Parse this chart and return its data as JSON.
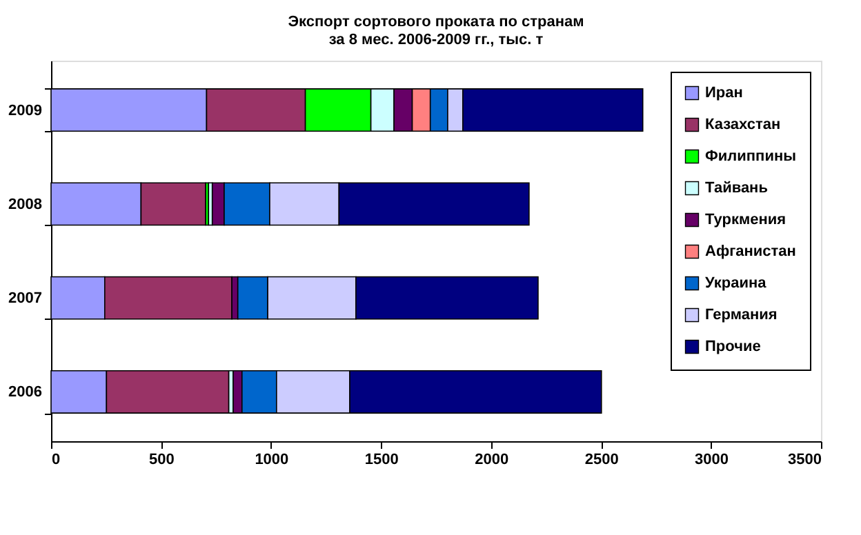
{
  "chart_data": {
    "type": "bar",
    "orientation": "horizontal",
    "stacked": true,
    "title": "Экспорт сортового проката по странам\nза 8 мес. 2006-2009 гг., тыс. т",
    "categories": [
      "2009",
      "2008",
      "2007",
      "2006"
    ],
    "series": [
      {
        "name": "Иран",
        "color": "#9999ff",
        "values": [
          707,
          409,
          244,
          252
        ]
      },
      {
        "name": "Казахстан",
        "color": "#993366",
        "values": [
          449,
          294,
          578,
          556
        ]
      },
      {
        "name": "Филиппины",
        "color": "#00ff00",
        "values": [
          298,
          13,
          0,
          0
        ]
      },
      {
        "name": "Тайвань",
        "color": "#ccffff",
        "values": [
          105,
          17,
          0,
          20
        ]
      },
      {
        "name": "Туркмения",
        "color": "#660066",
        "values": [
          83,
          54,
          27,
          40
        ]
      },
      {
        "name": "Афганистан",
        "color": "#ff8080",
        "values": [
          82,
          0,
          0,
          0
        ]
      },
      {
        "name": "Украина",
        "color": "#0066cc",
        "values": [
          79,
          207,
          136,
          157
        ]
      },
      {
        "name": "Германия",
        "color": "#ccccff",
        "values": [
          69,
          315,
          401,
          333
        ]
      },
      {
        "name": "Прочие",
        "color": "#000080",
        "values": [
          818,
          864,
          828,
          1144
        ]
      }
    ],
    "xlim": [
      0,
      3500
    ],
    "xticks": [
      0,
      500,
      1000,
      1500,
      2000,
      2500,
      3000,
      3500
    ],
    "grid": false,
    "legend": "top right"
  }
}
